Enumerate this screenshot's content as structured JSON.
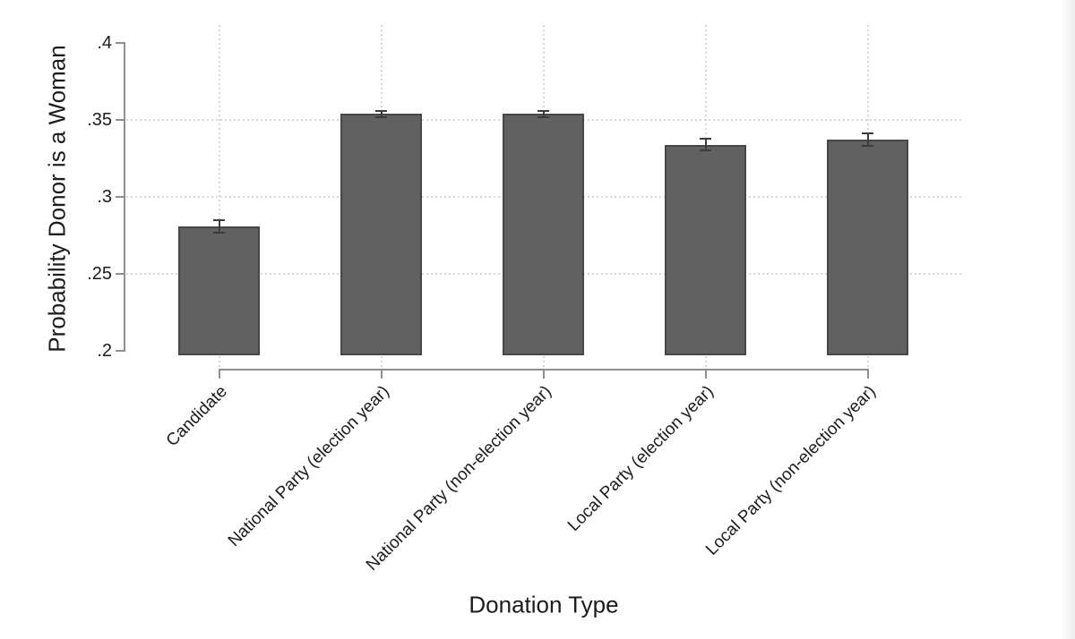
{
  "chart_data": {
    "type": "bar",
    "title": "",
    "xlabel": "Donation Type",
    "ylabel": "Probability Donor is a Woman",
    "ylim": [
      0.2,
      0.4
    ],
    "ytick_values": [
      0.2,
      0.25,
      0.3,
      0.35,
      0.4
    ],
    "ytick_labels": [
      ".2",
      ".25",
      ".3",
      ".35",
      ".4"
    ],
    "grid": "dotted horizontal lines at interior y-ticks and dotted vertical lines at each category center",
    "legend": false,
    "bar_color": "#616161",
    "bar_edge_color": "#474747",
    "error_bar_color": "#3c3c3c",
    "categories": [
      "Candidate",
      "National Party (election year)",
      "National Party (non-election year)",
      "Local Party (election year)",
      "Local Party (non-election year)"
    ],
    "values": [
      0.281,
      0.354,
      0.354,
      0.334,
      0.337
    ],
    "ci_low": [
      0.277,
      0.352,
      0.352,
      0.33,
      0.333
    ],
    "ci_high": [
      0.285,
      0.356,
      0.356,
      0.338,
      0.341
    ]
  }
}
